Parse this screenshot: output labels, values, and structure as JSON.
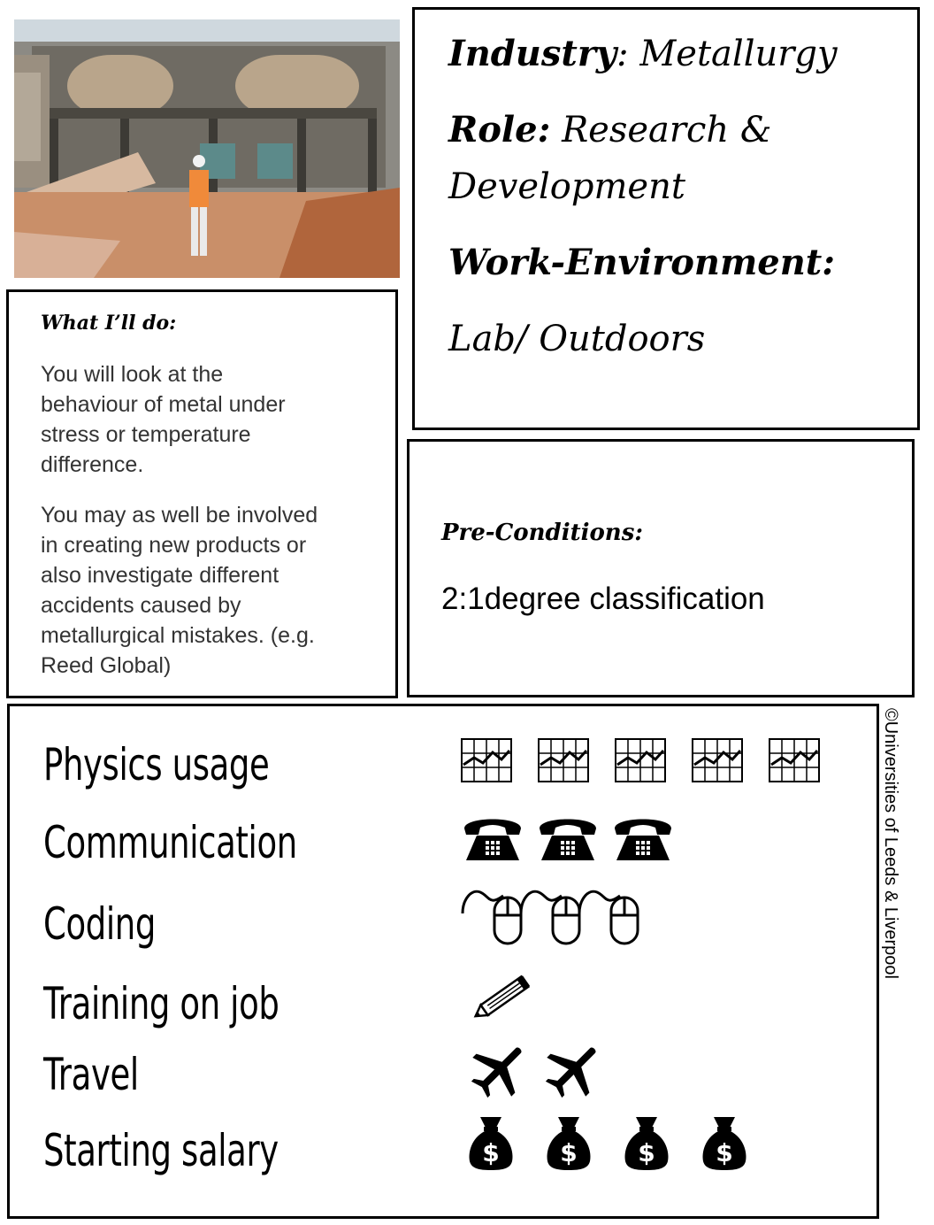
{
  "info": {
    "industry_label": "Industry",
    "industry_value": ": Metallurgy",
    "role_label": "Role:",
    "role_value_1": "Research &",
    "role_value_2": "Development",
    "env_label": "Work-Environment:",
    "env_value": "Lab/ Outdoors"
  },
  "what_ill_do": {
    "heading": "What I’ll do:",
    "para1_lines": [
      "You will look at the",
      "behaviour of metal under",
      "stress or temperature",
      "difference."
    ],
    "para2_lines": [
      "You may as well be involved",
      "in creating new products or",
      "also investigate different",
      "accidents caused by",
      "metallurgical mistakes. (e.g.",
      "Reed Global)"
    ]
  },
  "preconditions": {
    "heading": "Pre-Conditions:",
    "value": "2:1degree classification"
  },
  "ratings": [
    {
      "label": "Physics usage",
      "icon": "chart-icon",
      "count": 5
    },
    {
      "label": "Communication",
      "icon": "telephone-icon",
      "count": 3
    },
    {
      "label": "Coding",
      "icon": "mouse-icon",
      "count": 3
    },
    {
      "label": "Training on job",
      "icon": "pencil-icon",
      "count": 1
    },
    {
      "label": "Travel",
      "icon": "airplane-icon",
      "count": 2
    },
    {
      "label": "Starting salary",
      "icon": "money-bag-icon",
      "count": 4
    }
  ],
  "copyright": "©Universities of Leeds & Liverpool"
}
